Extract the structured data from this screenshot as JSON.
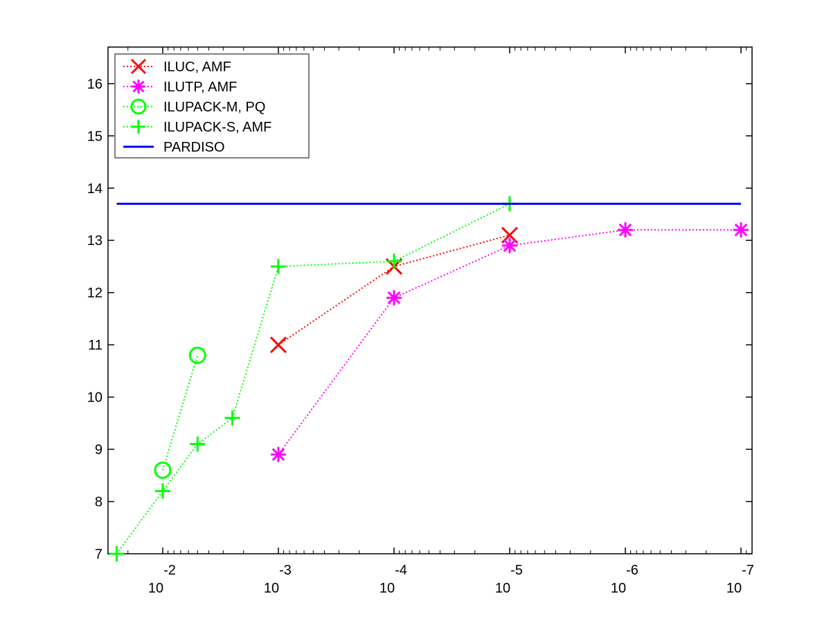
{
  "chart_data": {
    "type": "line",
    "title": "",
    "xlabel": "",
    "ylabel": "",
    "x_scale": "log-reversed",
    "xlim": [
      0.03,
      1e-07
    ],
    "ylim": [
      7,
      16.7
    ],
    "y_ticks": [
      7,
      8,
      9,
      10,
      11,
      12,
      13,
      14,
      15,
      16
    ],
    "x_ticks": [
      {
        "value": 0.01,
        "base": "10",
        "exp": "-2"
      },
      {
        "value": 0.001,
        "base": "10",
        "exp": "-3"
      },
      {
        "value": 0.0001,
        "base": "10",
        "exp": "-4"
      },
      {
        "value": 1e-05,
        "base": "10",
        "exp": "-5"
      },
      {
        "value": 1e-06,
        "base": "10",
        "exp": "-6"
      },
      {
        "value": 1e-07,
        "base": "10",
        "exp": "-7"
      }
    ],
    "legend_position": "top-left",
    "series": [
      {
        "name": "ILUC, AMF",
        "color": "#ff0000",
        "marker": "x-mark",
        "line": "dotted",
        "points": [
          [
            0.001,
            11.0
          ],
          [
            0.0001,
            12.5
          ],
          [
            1e-05,
            13.1
          ]
        ]
      },
      {
        "name": "ILUTP, AMF",
        "color": "#ff00ff",
        "marker": "asterisk",
        "line": "dotted",
        "points": [
          [
            0.001,
            8.9
          ],
          [
            0.0001,
            11.9
          ],
          [
            1e-05,
            12.9
          ],
          [
            1e-06,
            13.2
          ],
          [
            1e-07,
            13.2
          ]
        ]
      },
      {
        "name": "ILUPACK-M, PQ",
        "color": "#00ff00",
        "marker": "circle",
        "line": "dotted",
        "points": [
          [
            0.01,
            8.6
          ],
          [
            0.005,
            10.8
          ]
        ]
      },
      {
        "name": "ILUPACK-S, AMF",
        "color": "#00ff00",
        "marker": "plus",
        "line": "dotted",
        "points": [
          [
            0.025,
            7.0
          ],
          [
            0.01,
            8.2
          ],
          [
            0.005,
            9.1
          ],
          [
            0.0025,
            9.6
          ],
          [
            0.001,
            12.5
          ],
          [
            0.0001,
            12.6
          ],
          [
            1e-05,
            13.7
          ]
        ]
      },
      {
        "name": "PARDISO",
        "color": "#0000ff",
        "marker": "none",
        "line": "solid",
        "points": [
          [
            0.025,
            13.7
          ],
          [
            1e-07,
            13.7
          ]
        ]
      }
    ]
  }
}
